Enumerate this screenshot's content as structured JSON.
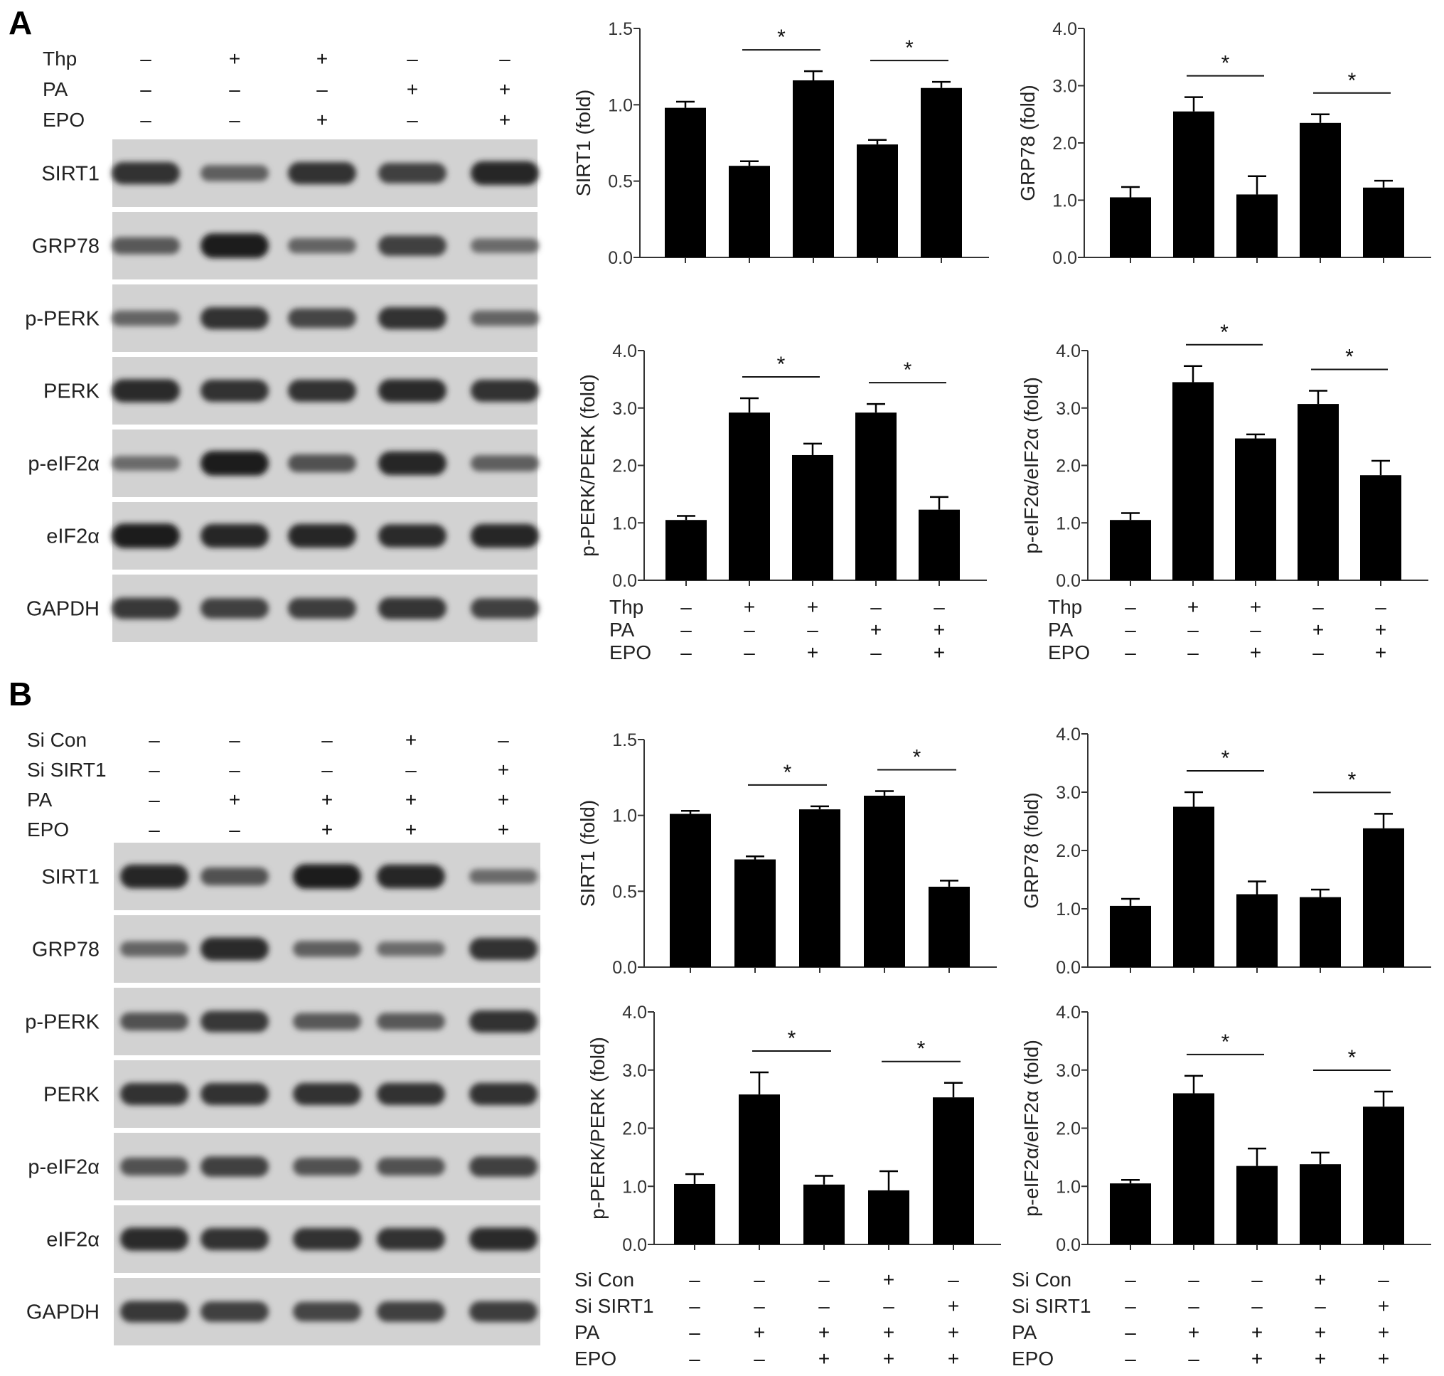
{
  "panels": [
    {
      "letter": "A",
      "treatments": [
        {
          "label": "Thp",
          "signs": [
            "–",
            "+",
            "+",
            "–",
            "–"
          ]
        },
        {
          "label": "PA",
          "signs": [
            "–",
            "–",
            "–",
            "+",
            "+"
          ]
        },
        {
          "label": "EPO",
          "signs": [
            "–",
            "–",
            "+",
            "–",
            "+"
          ]
        }
      ],
      "blots": [
        {
          "label": "SIRT1",
          "intensity": [
            0.8,
            0.45,
            0.8,
            0.7,
            0.9
          ]
        },
        {
          "label": "GRP78",
          "intensity": [
            0.5,
            0.95,
            0.4,
            0.7,
            0.35
          ]
        },
        {
          "label": "p-PERK",
          "intensity": [
            0.4,
            0.8,
            0.65,
            0.8,
            0.4
          ]
        },
        {
          "label": "PERK",
          "intensity": [
            0.85,
            0.8,
            0.8,
            0.85,
            0.8
          ]
        },
        {
          "label": "p-eIF2α",
          "intensity": [
            0.35,
            0.95,
            0.55,
            0.9,
            0.45
          ]
        },
        {
          "label": "eIF2α",
          "intensity": [
            0.95,
            0.9,
            0.9,
            0.85,
            0.9
          ]
        },
        {
          "label": "GAPDH",
          "intensity": [
            0.75,
            0.7,
            0.72,
            0.78,
            0.7
          ]
        }
      ]
    },
    {
      "letter": "B",
      "treatments": [
        {
          "label": "Si Con",
          "signs": [
            "–",
            "–",
            "–",
            "+",
            "–"
          ]
        },
        {
          "label": "Si  SIRT1",
          "signs": [
            "–",
            "–",
            "–",
            "–",
            "+"
          ]
        },
        {
          "label": "PA",
          "signs": [
            "–",
            "+",
            "+",
            "+",
            "+"
          ]
        },
        {
          "label": "EPO",
          "signs": [
            "–",
            "–",
            "+",
            "+",
            "+"
          ]
        }
      ],
      "blots": [
        {
          "label": "SIRT1",
          "intensity": [
            0.9,
            0.55,
            0.95,
            0.9,
            0.35
          ]
        },
        {
          "label": "GRP78",
          "intensity": [
            0.4,
            0.85,
            0.45,
            0.35,
            0.8
          ]
        },
        {
          "label": "p-PERK",
          "intensity": [
            0.55,
            0.75,
            0.5,
            0.5,
            0.8
          ]
        },
        {
          "label": "PERK",
          "intensity": [
            0.8,
            0.8,
            0.8,
            0.8,
            0.8
          ]
        },
        {
          "label": "p-eIF2α",
          "intensity": [
            0.55,
            0.7,
            0.55,
            0.55,
            0.7
          ]
        },
        {
          "label": "eIF2α",
          "intensity": [
            0.85,
            0.8,
            0.8,
            0.8,
            0.85
          ]
        },
        {
          "label": "GAPDH",
          "intensity": [
            0.75,
            0.7,
            0.65,
            0.7,
            0.72
          ]
        }
      ]
    }
  ],
  "chart_data": [
    {
      "id": "A1",
      "type": "bar",
      "ylabel": "SIRT1 (fold)",
      "ylim": [
        0,
        1.5
      ],
      "ticks": [
        "0.0",
        "0.5",
        "1.0",
        "1.5"
      ],
      "values": [
        0.98,
        0.6,
        1.16,
        0.74,
        1.11
      ],
      "errors": [
        0.04,
        0.03,
        0.06,
        0.03,
        0.04
      ],
      "significance": [
        {
          "from": 1,
          "to": 2,
          "label": "*"
        },
        {
          "from": 3,
          "to": 4,
          "label": "*"
        }
      ],
      "treatments": []
    },
    {
      "id": "A2",
      "type": "bar",
      "ylabel": "GRP78 (fold)",
      "ylim": [
        0,
        4.0
      ],
      "ticks": [
        "0.0",
        "1.0",
        "2.0",
        "3.0",
        "4.0"
      ],
      "values": [
        1.05,
        2.55,
        1.1,
        2.35,
        1.22
      ],
      "errors": [
        0.18,
        0.25,
        0.32,
        0.15,
        0.12
      ],
      "significance": [
        {
          "from": 1,
          "to": 2,
          "label": "*"
        },
        {
          "from": 3,
          "to": 4,
          "label": "*"
        }
      ],
      "treatments": []
    },
    {
      "id": "A3",
      "type": "bar",
      "ylabel": "p-PERK/PERK (fold)",
      "ylim": [
        0,
        4.0
      ],
      "ticks": [
        "0.0",
        "1.0",
        "2.0",
        "3.0",
        "4.0"
      ],
      "values": [
        1.05,
        2.92,
        2.18,
        2.92,
        1.23
      ],
      "errors": [
        0.07,
        0.25,
        0.2,
        0.15,
        0.22
      ],
      "significance": [
        {
          "from": 1,
          "to": 2,
          "label": "*"
        },
        {
          "from": 3,
          "to": 4,
          "label": "*"
        }
      ],
      "treatments": [
        {
          "label": "Thp",
          "signs": [
            "–",
            "+",
            "+",
            "–",
            "–"
          ]
        },
        {
          "label": "PA",
          "signs": [
            "–",
            "–",
            "–",
            "+",
            "+"
          ]
        },
        {
          "label": "EPO",
          "signs": [
            "–",
            "–",
            "+",
            "–",
            "+"
          ]
        }
      ]
    },
    {
      "id": "A4",
      "type": "bar",
      "ylabel": "p-eIF2α/eIF2α (fold)",
      "ylim": [
        0,
        4.0
      ],
      "ticks": [
        "0.0",
        "1.0",
        "2.0",
        "3.0",
        "4.0"
      ],
      "values": [
        1.05,
        3.45,
        2.47,
        3.07,
        1.83
      ],
      "errors": [
        0.12,
        0.28,
        0.07,
        0.23,
        0.25
      ],
      "significance": [
        {
          "from": 1,
          "to": 2,
          "label": "*"
        },
        {
          "from": 3,
          "to": 4,
          "label": "*"
        }
      ],
      "treatments": [
        {
          "label": "Thp",
          "signs": [
            "–",
            "+",
            "+",
            "–",
            "–"
          ]
        },
        {
          "label": "PA",
          "signs": [
            "–",
            "–",
            "–",
            "+",
            "+"
          ]
        },
        {
          "label": "EPO",
          "signs": [
            "–",
            "–",
            "+",
            "–",
            "+"
          ]
        }
      ]
    },
    {
      "id": "B1",
      "type": "bar",
      "ylabel": "SIRT1 (fold)",
      "ylim": [
        0,
        1.5
      ],
      "ticks": [
        "0.0",
        "0.5",
        "1.0",
        "1.5"
      ],
      "values": [
        1.01,
        0.71,
        1.04,
        1.13,
        0.53
      ],
      "errors": [
        0.02,
        0.02,
        0.02,
        0.03,
        0.04
      ],
      "significance": [
        {
          "from": 1,
          "to": 2,
          "label": "*"
        },
        {
          "from": 3,
          "to": 4,
          "label": "*"
        }
      ],
      "treatments": []
    },
    {
      "id": "B2",
      "type": "bar",
      "ylabel": "GRP78 (fold)",
      "ylim": [
        0,
        4.0
      ],
      "ticks": [
        "0.0",
        "1.0",
        "2.0",
        "3.0",
        "4.0"
      ],
      "values": [
        1.05,
        2.75,
        1.25,
        1.2,
        2.38
      ],
      "errors": [
        0.12,
        0.25,
        0.22,
        0.13,
        0.25
      ],
      "significance": [
        {
          "from": 1,
          "to": 2,
          "label": "*"
        },
        {
          "from": 3,
          "to": 4,
          "label": "*"
        }
      ],
      "treatments": []
    },
    {
      "id": "B3",
      "type": "bar",
      "ylabel": "p-PERK/PERK (fold)",
      "ylim": [
        0,
        4.0
      ],
      "ticks": [
        "0.0",
        "1.0",
        "2.0",
        "3.0",
        "4.0"
      ],
      "values": [
        1.04,
        2.58,
        1.03,
        0.93,
        2.53
      ],
      "errors": [
        0.17,
        0.38,
        0.15,
        0.33,
        0.25
      ],
      "significance": [
        {
          "from": 1,
          "to": 2,
          "label": "*"
        },
        {
          "from": 3,
          "to": 4,
          "label": "*"
        }
      ],
      "treatments": [
        {
          "label": "Si Con",
          "signs": [
            "–",
            "–",
            "–",
            "+",
            "–"
          ]
        },
        {
          "label": "Si SIRT1",
          "signs": [
            "–",
            "–",
            "–",
            "–",
            "+"
          ]
        },
        {
          "label": "PA",
          "signs": [
            "–",
            "+",
            "+",
            "+",
            "+"
          ]
        },
        {
          "label": "EPO",
          "signs": [
            "–",
            "–",
            "+",
            "+",
            "+"
          ]
        }
      ]
    },
    {
      "id": "B4",
      "type": "bar",
      "ylabel": "p-eIF2α/eIF2α (fold)",
      "ylim": [
        0,
        4.0
      ],
      "ticks": [
        "0.0",
        "1.0",
        "2.0",
        "3.0",
        "4.0"
      ],
      "values": [
        1.05,
        2.6,
        1.35,
        1.38,
        2.37
      ],
      "errors": [
        0.06,
        0.3,
        0.3,
        0.2,
        0.26
      ],
      "significance": [
        {
          "from": 1,
          "to": 2,
          "label": "*"
        },
        {
          "from": 3,
          "to": 4,
          "label": "*"
        }
      ],
      "treatments": [
        {
          "label": "Si Con",
          "signs": [
            "–",
            "–",
            "–",
            "+",
            "–"
          ]
        },
        {
          "label": "Si SIRT1",
          "signs": [
            "–",
            "–",
            "–",
            "–",
            "+"
          ]
        },
        {
          "label": "PA",
          "signs": [
            "–",
            "+",
            "+",
            "+",
            "+"
          ]
        },
        {
          "label": "EPO",
          "signs": [
            "–",
            "–",
            "+",
            "+",
            "+"
          ]
        }
      ]
    }
  ]
}
